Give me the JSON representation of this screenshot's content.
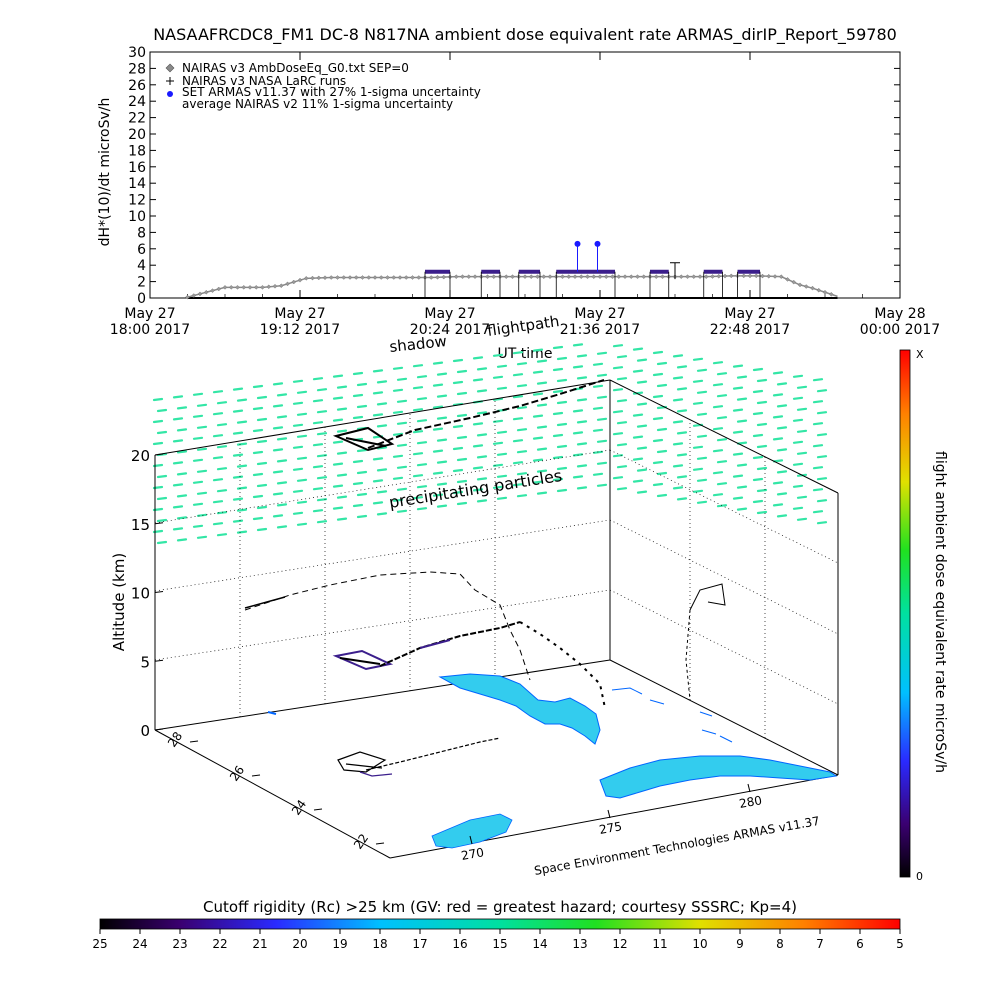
{
  "header": {
    "title": "NASAAFRCDC8_FM1 DC-8   N817NA ambient dose equivalent rate ARMAS_dirIP_Report_59780"
  },
  "colors": {
    "nairas_v3_line": "#8a8a8a",
    "armas_points": "#3b1e8c",
    "armas_spike": "#1a1aff",
    "particles": "#33e6a6",
    "ocean_land": "#33ccee",
    "land_outline": "#0066ff",
    "flight_path": "#000000"
  },
  "chart_data": [
    {
      "type": "line",
      "title": "NASAAFRCDC8_FM1 DC-8   N817NA ambient dose equivalent rate ARMAS_dirIP_Report_59780",
      "xlabel": "UT time",
      "ylabel": "dH*(10)/dt microSv/h",
      "ylim": [
        0,
        30
      ],
      "yticks": [
        "0",
        "2",
        "4",
        "6",
        "8",
        "10",
        "12",
        "14",
        "16",
        "18",
        "20",
        "22",
        "24",
        "26",
        "28",
        "30"
      ],
      "xticks": [
        {
          "line1": "May 27",
          "line2": "18:00 2017"
        },
        {
          "line1": "May 27",
          "line2": "19:12 2017"
        },
        {
          "line1": "May 27",
          "line2": "20:24 2017"
        },
        {
          "line1": "May 27",
          "line2": "21:36 2017"
        },
        {
          "line1": "May 27",
          "line2": "22:48 2017"
        },
        {
          "line1": "May 28",
          "line2": "00:00 2017"
        }
      ],
      "xlim_hours": [
        18.0,
        24.0
      ],
      "legend": [
        "NAIRAS v3 AmbDoseEq_G0.txt SEP=0",
        "NAIRAS v3 NASA LaRC runs",
        "SET ARMAS v11.37 with 27% 1-sigma uncertainty",
        "average NAIRAS v2 11% 1-sigma uncertainty"
      ],
      "legend_position": "top-left",
      "series": [
        {
          "name": "NAIRAS v3 AmbDoseEq_G0.txt SEP=0",
          "x_hours": [
            18.3,
            18.45,
            18.6,
            18.75,
            18.9,
            19.05,
            19.25,
            19.45,
            19.65,
            19.85,
            20.05,
            20.25,
            20.45,
            20.65,
            20.85,
            21.05,
            21.25,
            21.45,
            21.65,
            21.85,
            22.05,
            22.25,
            22.45,
            22.65,
            22.85,
            23.05,
            23.2,
            23.3,
            23.4,
            23.5
          ],
          "values": [
            0.1,
            0.7,
            1.3,
            1.3,
            1.3,
            1.5,
            2.4,
            2.5,
            2.5,
            2.5,
            2.5,
            2.5,
            2.6,
            2.6,
            2.6,
            2.6,
            2.6,
            2.6,
            2.6,
            2.6,
            2.6,
            2.6,
            2.6,
            2.7,
            2.7,
            2.6,
            1.6,
            1.2,
            0.7,
            0.2
          ]
        },
        {
          "name": "SET ARMAS v11.37 with 27% 1-sigma uncertainty",
          "segments": [
            {
              "x_start": 20.2,
              "x_end": 20.4,
              "value": 3.2
            },
            {
              "x_start": 20.65,
              "x_end": 20.8,
              "value": 3.2
            },
            {
              "x_start": 20.95,
              "x_end": 21.12,
              "value": 3.2
            },
            {
              "x_start": 21.25,
              "x_end": 21.72,
              "value": 3.2
            },
            {
              "x_start": 22.0,
              "x_end": 22.15,
              "value": 3.2
            },
            {
              "x_start": 22.43,
              "x_end": 22.58,
              "value": 3.2
            },
            {
              "x_start": 22.7,
              "x_end": 22.88,
              "value": 3.2
            }
          ],
          "spikes": [
            {
              "x": 21.42,
              "value": 6.6
            },
            {
              "x": 21.58,
              "value": 6.6
            }
          ],
          "error_bar": {
            "x": 22.2,
            "low": 2.3,
            "high": 4.3
          }
        },
        {
          "name": "average NAIRAS v2 11% 1-sigma uncertainty",
          "x_hours": [
            18.3,
            23.5
          ],
          "values": [
            0,
            0
          ]
        }
      ]
    },
    {
      "type": "scatter",
      "zlabel": "Altitude (km)",
      "zticks": [
        "0",
        "5",
        "10",
        "15",
        "20"
      ],
      "y_ticks_lat": [
        "22",
        "24",
        "26",
        "28"
      ],
      "x_ticks_lon": [
        "270",
        "275",
        "280"
      ],
      "annotations": [
        "shadow",
        "flightpath",
        "precipitating particles",
        "Space Environment Technologies ARMAS v11.37"
      ],
      "colorbar_right": {
        "label": "flight ambient dose equivalent rate microSv/h",
        "top_label": "X",
        "bottom_label": "0"
      },
      "colorbar_bottom": {
        "label": "Cutoff rigidity (Rc) >25 km (GV: red = greatest hazard; courtesy SSSRC; Kp=4)",
        "ticks": [
          "25",
          "24",
          "23",
          "22",
          "21",
          "20",
          "19",
          "18",
          "17",
          "16",
          "15",
          "14",
          "13",
          "12",
          "11",
          "10",
          "9",
          "8",
          "7",
          "6",
          "5"
        ]
      }
    }
  ]
}
